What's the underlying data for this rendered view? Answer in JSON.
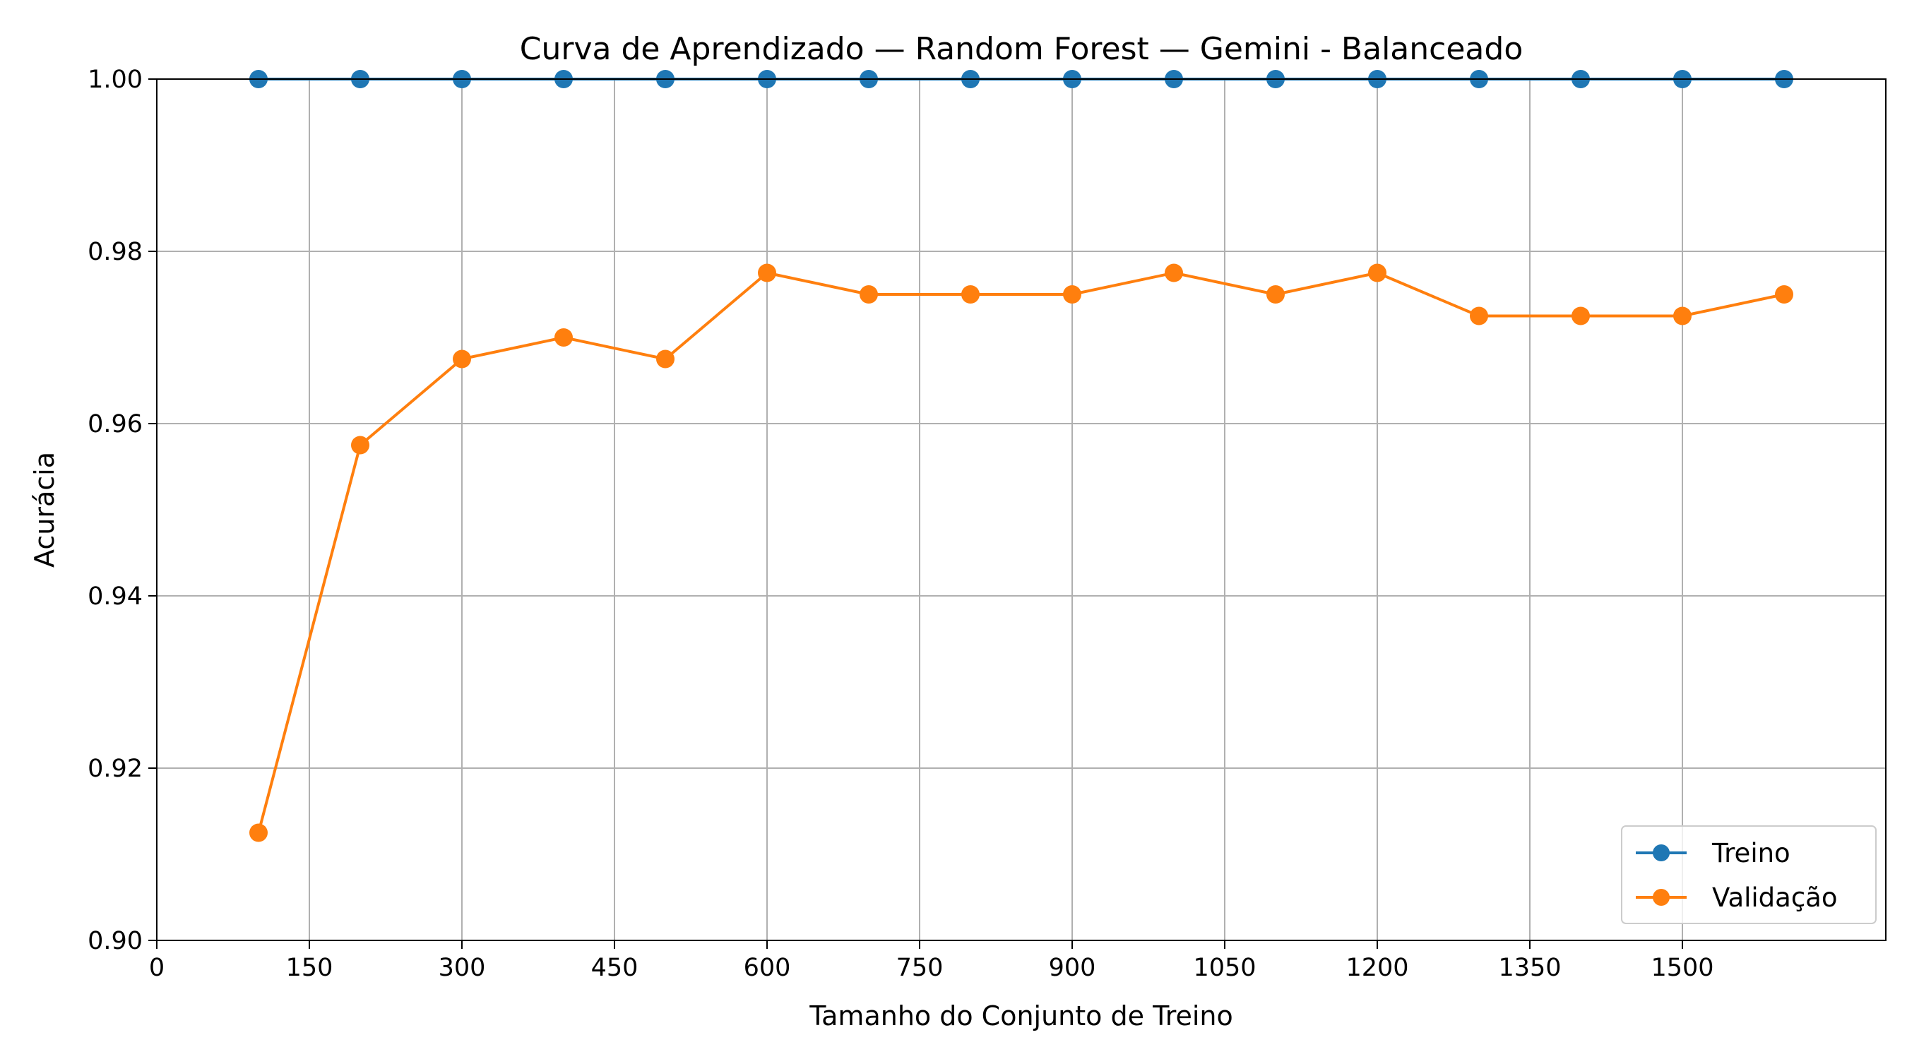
{
  "chart_data": {
    "type": "line",
    "title": "Curva de Aprendizado — Random Forest — Gemini - Balanceado",
    "xlabel": "Tamanho do Conjunto de Treino",
    "ylabel": "Acurácia",
    "xlim": [
      0,
      1700
    ],
    "ylim": [
      0.9,
      1.0
    ],
    "xticks": [
      0,
      150,
      300,
      450,
      600,
      750,
      900,
      1050,
      1200,
      1350,
      1500
    ],
    "xtick_labels": [
      "0",
      "150",
      "300",
      "450",
      "600",
      "750",
      "900",
      "1050",
      "1200",
      "1350",
      "1500"
    ],
    "yticks": [
      0.9,
      0.92,
      0.94,
      0.96,
      0.98,
      1.0
    ],
    "ytick_labels": [
      "0.90",
      "0.92",
      "0.94",
      "0.96",
      "0.98",
      "1.00"
    ],
    "grid": true,
    "legend_position": "bottom-right",
    "x": [
      100,
      200,
      300,
      400,
      500,
      600,
      700,
      800,
      900,
      1000,
      1100,
      1200,
      1300,
      1400,
      1500,
      1600
    ],
    "series": [
      {
        "name": "Treino",
        "color": "#1f77b4",
        "values": [
          1.0,
          1.0,
          1.0,
          1.0,
          1.0,
          1.0,
          1.0,
          1.0,
          1.0,
          1.0,
          1.0,
          1.0,
          1.0,
          1.0,
          1.0,
          1.0
        ]
      },
      {
        "name": "Validação",
        "color": "#ff7f0e",
        "values": [
          0.9125,
          0.9575,
          0.9675,
          0.97,
          0.9675,
          0.9775,
          0.975,
          0.975,
          0.975,
          0.9775,
          0.975,
          0.9775,
          0.9725,
          0.9725,
          0.9725,
          0.975
        ]
      }
    ]
  }
}
